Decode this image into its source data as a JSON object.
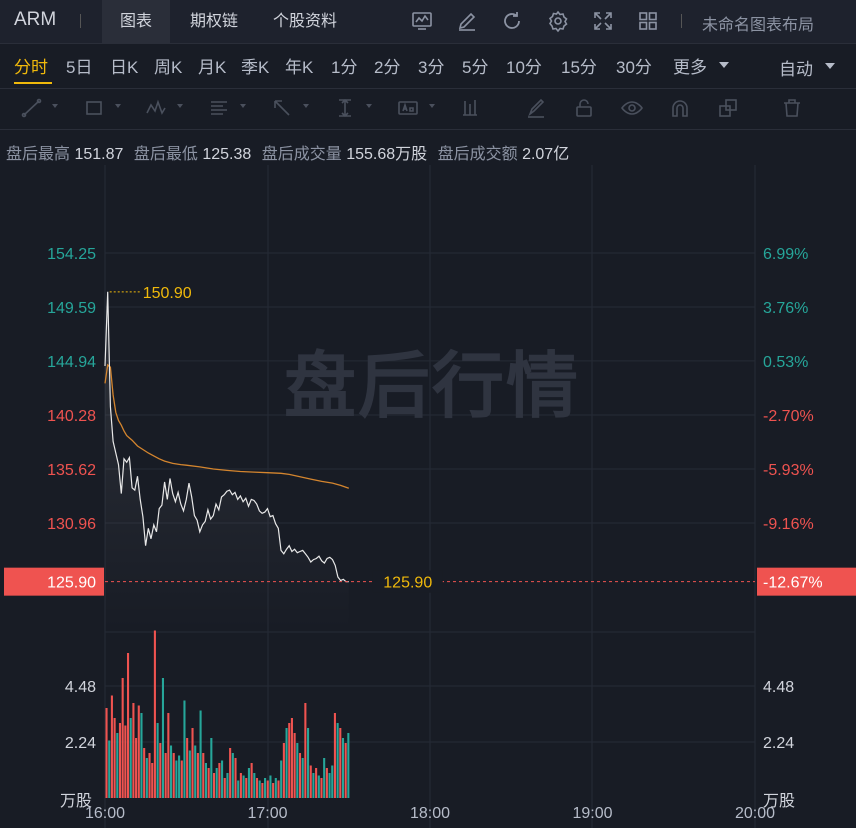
{
  "header": {
    "symbol": "ARM",
    "tabs": [
      {
        "label": "图表"
      },
      {
        "label": "期权链"
      },
      {
        "label": "个股资料"
      }
    ],
    "active_tab": "图表",
    "icons": [
      "indicator-chart-icon",
      "edit-pen-icon",
      "refresh-icon",
      "settings-gear-icon",
      "fullscreen-icon",
      "layout-grid-icon"
    ],
    "layout_label": "未命名图表布局"
  },
  "periods": {
    "items": [
      {
        "label": "分时"
      },
      {
        "label": "5日"
      },
      {
        "label": "日K"
      },
      {
        "label": "周K"
      },
      {
        "label": "月K"
      },
      {
        "label": "季K"
      },
      {
        "label": "年K"
      },
      {
        "label": "1分"
      },
      {
        "label": "2分"
      },
      {
        "label": "3分"
      },
      {
        "label": "5分"
      },
      {
        "label": "10分"
      },
      {
        "label": "15分"
      },
      {
        "label": "30分"
      },
      {
        "label": "更多"
      }
    ],
    "active": "分时",
    "scale_mode": "自动"
  },
  "drawing_tools": [
    "trend-line-icon",
    "rectangle-icon",
    "pattern-icon",
    "text-list-icon",
    "arrow-icon",
    "measure-icon",
    "label-box-icon",
    "bar-marker-icon",
    "brush-icon",
    "lock-icon",
    "eye-icon",
    "magnet-icon",
    "layers-icon",
    "trash-icon"
  ],
  "stats": {
    "high_label": "盘后最高",
    "high_value": "151.87",
    "low_label": "盘后最低",
    "low_value": "125.38",
    "volume_label": "盘后成交量",
    "volume_value": "155.68万股",
    "amount_label": "盘后成交额",
    "amount_value": "2.07亿"
  },
  "watermark": "盘后行情",
  "colors": {
    "up": "#26a69a",
    "down": "#ef5350",
    "avg_line": "#d4852e",
    "price_line": "#e8e8e8",
    "highlight": "#f0b90b",
    "accent": "#f0b90b",
    "background": "#181c25"
  },
  "chart_data": {
    "type": "line",
    "price_axis": {
      "left_ticks": [
        "154.25",
        "149.59",
        "144.94",
        "140.28",
        "135.62",
        "130.96"
      ],
      "right_ticks": [
        "6.99%",
        "3.76%",
        "0.53%",
        "-2.70%",
        "-5.93%",
        "-9.16%"
      ],
      "left_values": [
        154.25,
        149.59,
        144.94,
        140.28,
        135.62,
        130.96
      ],
      "current_price": "125.90",
      "current_change": "-12.67%",
      "current_value": 125.9,
      "high_marker": "150.90",
      "high_value": 150.9
    },
    "volume_axis": {
      "ticks": [
        "4.48",
        "2.24"
      ],
      "values": [
        4.48,
        2.24
      ],
      "unit": "万股"
    },
    "x_ticks": [
      "16:00",
      "17:00",
      "18:00",
      "19:00",
      "20:00"
    ],
    "price_series": [
      [
        "16:00",
        144.5
      ],
      [
        "16:01",
        150.9
      ],
      [
        "16:02",
        141.0
      ],
      [
        "16:03",
        138.0
      ],
      [
        "16:04",
        137.0
      ],
      [
        "16:05",
        136.0
      ],
      [
        "16:06",
        133.5
      ],
      [
        "16:07",
        136.5
      ],
      [
        "16:08",
        136.2
      ],
      [
        "16:09",
        136.6
      ],
      [
        "16:10",
        134.0
      ],
      [
        "16:11",
        133.8
      ],
      [
        "16:12",
        135.0
      ],
      [
        "16:13",
        133.0
      ],
      [
        "16:14",
        131.5
      ],
      [
        "16:15",
        129.0
      ],
      [
        "16:16",
        130.5
      ],
      [
        "16:17",
        129.6
      ],
      [
        "16:18",
        130.8
      ],
      [
        "16:19",
        130.2
      ],
      [
        "16:20",
        132.2
      ],
      [
        "16:21",
        132.5
      ],
      [
        "16:22",
        134.5
      ],
      [
        "16:23",
        133.0
      ],
      [
        "16:24",
        134.8
      ],
      [
        "16:25",
        133.5
      ],
      [
        "16:26",
        132.8
      ],
      [
        "16:27",
        133.6
      ],
      [
        "16:28",
        132.6
      ],
      [
        "16:29",
        132.0
      ],
      [
        "16:30",
        133.0
      ],
      [
        "16:31",
        134.4
      ],
      [
        "16:32",
        133.2
      ],
      [
        "16:33",
        131.6
      ],
      [
        "16:34",
        131.2
      ],
      [
        "16:35",
        130.2
      ],
      [
        "16:36",
        130.8
      ],
      [
        "16:37",
        131.1
      ],
      [
        "16:38",
        132.1
      ],
      [
        "16:39",
        131.3
      ],
      [
        "16:40",
        131.6
      ],
      [
        "16:41",
        132.6
      ],
      [
        "16:42",
        132.1
      ],
      [
        "16:43",
        133.2
      ],
      [
        "16:44",
        133.4
      ],
      [
        "16:45",
        133.7
      ],
      [
        "16:46",
        133.8
      ],
      [
        "16:47",
        133.4
      ],
      [
        "16:48",
        133.6
      ],
      [
        "16:49",
        133.0
      ],
      [
        "16:50",
        133.3
      ],
      [
        "16:51",
        132.8
      ],
      [
        "16:52",
        133.1
      ],
      [
        "16:53",
        132.4
      ],
      [
        "16:54",
        133.0
      ],
      [
        "16:55",
        132.9
      ],
      [
        "16:56",
        132.6
      ],
      [
        "16:57",
        132.0
      ],
      [
        "16:58",
        131.8
      ],
      [
        "16:59",
        131.9
      ],
      [
        "17:00",
        132.2
      ],
      [
        "17:01",
        131.5
      ],
      [
        "17:02",
        131.6
      ],
      [
        "17:03",
        130.9
      ],
      [
        "17:04",
        130.5
      ],
      [
        "17:05",
        128.6
      ],
      [
        "17:06",
        128.3
      ],
      [
        "17:07",
        128.7
      ],
      [
        "17:08",
        129.0
      ],
      [
        "17:09",
        128.5
      ],
      [
        "17:10",
        128.7
      ],
      [
        "17:11",
        128.4
      ],
      [
        "17:12",
        128.5
      ],
      [
        "17:13",
        128.6
      ],
      [
        "17:14",
        128.3
      ],
      [
        "17:15",
        128.0
      ],
      [
        "17:16",
        127.6
      ],
      [
        "17:17",
        127.8
      ],
      [
        "17:18",
        127.9
      ],
      [
        "17:19",
        128.1
      ],
      [
        "17:20",
        127.7
      ],
      [
        "17:21",
        127.5
      ],
      [
        "17:22",
        127.9
      ],
      [
        "17:23",
        128.0
      ],
      [
        "17:24",
        127.8
      ],
      [
        "17:25",
        127.3
      ],
      [
        "17:26",
        126.3
      ],
      [
        "17:27",
        126.0
      ],
      [
        "17:28",
        126.1
      ],
      [
        "17:29",
        125.9
      ],
      [
        "17:30",
        125.9
      ]
    ],
    "avg_series": [
      [
        "16:00",
        143.0
      ],
      [
        "16:01",
        144.6
      ],
      [
        "16:02",
        144.4
      ],
      [
        "16:03",
        142.0
      ],
      [
        "16:04",
        140.5
      ],
      [
        "16:05",
        139.8
      ],
      [
        "16:06",
        139.4
      ],
      [
        "16:07",
        138.9
      ],
      [
        "16:08",
        138.5
      ],
      [
        "16:10",
        138.1
      ],
      [
        "16:12",
        137.6
      ],
      [
        "16:14",
        137.3
      ],
      [
        "16:16",
        137.0
      ],
      [
        "16:18",
        136.75
      ],
      [
        "16:20",
        136.5
      ],
      [
        "16:22",
        136.3
      ],
      [
        "16:25",
        136.1
      ],
      [
        "16:28",
        136.0
      ],
      [
        "16:30",
        135.95
      ],
      [
        "16:35",
        135.8
      ],
      [
        "16:40",
        135.62
      ],
      [
        "16:45",
        135.5
      ],
      [
        "16:50",
        135.4
      ],
      [
        "16:55",
        135.35
      ],
      [
        "17:00",
        135.3
      ],
      [
        "17:05",
        135.25
      ],
      [
        "17:08",
        135.15
      ],
      [
        "17:12",
        134.95
      ],
      [
        "17:16",
        134.75
      ],
      [
        "17:20",
        134.55
      ],
      [
        "17:24",
        134.4
      ],
      [
        "17:27",
        134.2
      ],
      [
        "17:30",
        133.95
      ]
    ],
    "volume_bars": [
      [
        3.6,
        "down"
      ],
      [
        2.3,
        "up"
      ],
      [
        4.1,
        "down"
      ],
      [
        3.2,
        "down"
      ],
      [
        2.6,
        "up"
      ],
      [
        3.0,
        "down"
      ],
      [
        4.8,
        "down"
      ],
      [
        2.9,
        "down"
      ],
      [
        5.8,
        "down"
      ],
      [
        3.2,
        "up"
      ],
      [
        3.8,
        "down"
      ],
      [
        2.4,
        "down"
      ],
      [
        3.7,
        "down"
      ],
      [
        3.4,
        "up"
      ],
      [
        2.0,
        "down"
      ],
      [
        1.6,
        "up"
      ],
      [
        1.8,
        "down"
      ],
      [
        1.4,
        "down"
      ],
      [
        6.7,
        "down"
      ],
      [
        3.0,
        "up"
      ],
      [
        2.2,
        "down"
      ],
      [
        4.8,
        "up"
      ],
      [
        1.8,
        "down"
      ],
      [
        3.4,
        "down"
      ],
      [
        2.1,
        "up"
      ],
      [
        1.8,
        "down"
      ],
      [
        1.5,
        "up"
      ],
      [
        1.7,
        "up"
      ],
      [
        1.5,
        "down"
      ],
      [
        3.9,
        "up"
      ],
      [
        2.4,
        "down"
      ],
      [
        1.9,
        "up"
      ],
      [
        2.8,
        "down"
      ],
      [
        2.1,
        "up"
      ],
      [
        1.8,
        "down"
      ],
      [
        3.5,
        "up"
      ],
      [
        1.8,
        "down"
      ],
      [
        1.4,
        "up"
      ],
      [
        1.2,
        "down"
      ],
      [
        2.4,
        "up"
      ],
      [
        1.0,
        "down"
      ],
      [
        1.2,
        "up"
      ],
      [
        1.4,
        "down"
      ],
      [
        1.5,
        "up"
      ],
      [
        0.8,
        "down"
      ],
      [
        1.0,
        "up"
      ],
      [
        2.0,
        "down"
      ],
      [
        1.8,
        "up"
      ],
      [
        1.6,
        "down"
      ],
      [
        0.7,
        "up"
      ],
      [
        1.0,
        "down"
      ],
      [
        0.9,
        "up"
      ],
      [
        0.8,
        "down"
      ],
      [
        1.2,
        "up"
      ],
      [
        1.4,
        "down"
      ],
      [
        1.0,
        "up"
      ],
      [
        0.8,
        "down"
      ],
      [
        0.7,
        "up"
      ],
      [
        0.6,
        "down"
      ],
      [
        0.8,
        "up"
      ],
      [
        0.7,
        "down"
      ],
      [
        0.9,
        "up"
      ],
      [
        0.6,
        "down"
      ],
      [
        0.8,
        "up"
      ],
      [
        0.7,
        "down"
      ],
      [
        1.5,
        "up"
      ],
      [
        2.2,
        "down"
      ],
      [
        2.8,
        "up"
      ],
      [
        3.0,
        "down"
      ],
      [
        3.2,
        "down"
      ],
      [
        2.6,
        "down"
      ],
      [
        2.2,
        "up"
      ],
      [
        1.8,
        "down"
      ],
      [
        1.6,
        "up"
      ],
      [
        3.8,
        "down"
      ],
      [
        2.8,
        "up"
      ],
      [
        1.3,
        "down"
      ],
      [
        1.0,
        "up"
      ],
      [
        1.2,
        "down"
      ],
      [
        0.9,
        "up"
      ],
      [
        0.8,
        "down"
      ],
      [
        1.6,
        "up"
      ],
      [
        1.2,
        "down"
      ],
      [
        1.0,
        "up"
      ],
      [
        1.3,
        "up"
      ],
      [
        3.4,
        "down"
      ],
      [
        3.0,
        "up"
      ],
      [
        2.8,
        "down"
      ],
      [
        2.4,
        "up"
      ],
      [
        2.2,
        "down"
      ],
      [
        2.6,
        "up"
      ]
    ]
  }
}
